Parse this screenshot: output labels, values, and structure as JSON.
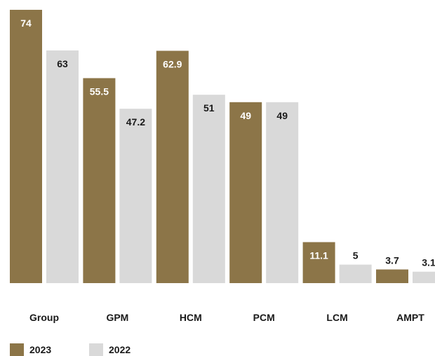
{
  "chart_data": {
    "type": "bar",
    "title": "",
    "xlabel": "",
    "ylabel": "",
    "categories": [
      "Group",
      "GPM",
      "HCM",
      "PCM",
      "LCM",
      "AMPT"
    ],
    "series": [
      {
        "name": "2023",
        "color": "#8c7548",
        "label_color": "#ffffff",
        "values": [
          74,
          55.5,
          62.9,
          49,
          11.1,
          3.7
        ],
        "labels": [
          "74",
          "55.5",
          "62.9",
          "49",
          "11.1",
          "3.7"
        ]
      },
      {
        "name": "2022",
        "color": "#d9d9d9",
        "label_color": "#1a1a1a",
        "values": [
          63,
          47.2,
          51,
          49,
          5,
          3.1
        ],
        "labels": [
          "63",
          "47.2",
          "51",
          "49",
          "5",
          "3.1"
        ]
      }
    ],
    "ylim": [
      0,
      74
    ],
    "grid": false,
    "legend": "bottom-left"
  }
}
